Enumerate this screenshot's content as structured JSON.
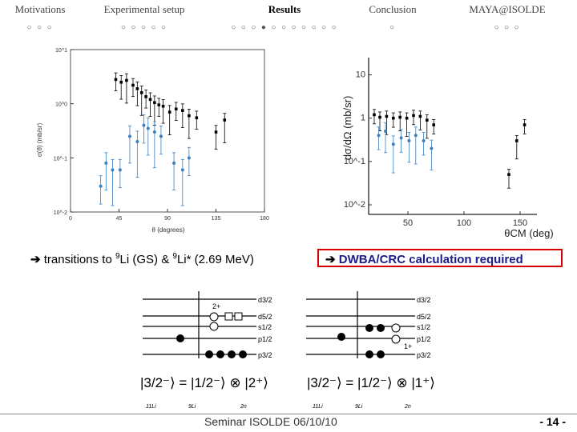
{
  "nav": {
    "sections": [
      {
        "title": "Motivations",
        "dots": "○ ○ ○"
      },
      {
        "title": "Experimental setup",
        "dots": "○ ○ ○ ○ ○"
      },
      {
        "title": "Results",
        "dots": "○ ○ ○ ● ○ ○ ○ ○ ○ ○ ○"
      },
      {
        "title": "Conclusion",
        "dots": "○"
      },
      {
        "title": "MAYA@ISOLDE",
        "dots": "○ ○ ○"
      }
    ]
  },
  "chart_data": [
    {
      "type": "scatter",
      "title": "",
      "xlabel": "θ (degrees)",
      "ylabel": "σ(θ) (mb/sr)",
      "yscale": "log",
      "xlim": [
        0,
        180
      ],
      "ylim": [
        0.01,
        10
      ],
      "xticks": [
        "0",
        "45",
        "90",
        "135",
        "180"
      ],
      "yticks": [
        "10^1",
        "10^0",
        "10^-1",
        "10^-2"
      ],
      "series": [
        {
          "name": "9Li (GS)",
          "color": "#000000",
          "x": [
            42,
            47,
            52,
            58,
            62,
            66,
            70,
            74,
            78,
            82,
            86,
            92,
            98,
            104,
            110,
            117,
            135,
            143
          ],
          "y": [
            2.8,
            2.5,
            2.7,
            2.2,
            1.9,
            1.6,
            1.35,
            1.2,
            1.05,
            0.95,
            0.9,
            0.7,
            0.8,
            0.75,
            0.6,
            0.55,
            0.3,
            0.5
          ]
        },
        {
          "name": "9Li* (2.69 MeV)",
          "color": "#3a7fc0",
          "x": [
            28,
            33,
            39,
            46,
            55,
            62,
            68,
            72,
            78,
            84,
            96,
            104,
            110
          ],
          "y": [
            0.03,
            0.08,
            0.06,
            0.06,
            0.25,
            0.2,
            0.4,
            0.35,
            0.3,
            0.25,
            0.08,
            0.06,
            0.1
          ]
        }
      ]
    },
    {
      "type": "scatter",
      "title": "",
      "xlabel": "θCM (deg)",
      "ylabel": "dσ/dΩ (mb/sr)",
      "yscale": "log",
      "xlim": [
        15,
        165
      ],
      "ylim": [
        0.006,
        25
      ],
      "xticks": [
        "50",
        "100",
        "150"
      ],
      "yticks": [
        "10",
        "1",
        "10^-1",
        "10^-2"
      ],
      "series": [
        {
          "name": "9Li (GS)",
          "color": "#000000",
          "x": [
            20,
            25,
            31,
            37,
            43,
            49,
            55,
            61,
            67,
            73,
            140,
            147,
            154
          ],
          "y": [
            1.2,
            1.05,
            1.1,
            1.0,
            1.05,
            1.0,
            1.15,
            1.1,
            0.9,
            0.7,
            0.05,
            0.3,
            0.7
          ]
        },
        {
          "name": "9Li* (2.69 MeV)",
          "color": "#3a7fc0",
          "x": [
            24,
            30,
            37,
            44,
            51,
            57,
            64,
            71
          ],
          "y": [
            0.4,
            0.5,
            0.25,
            0.35,
            0.3,
            0.4,
            0.3,
            0.2
          ]
        }
      ]
    }
  ],
  "content": {
    "caption_prefix": "transitions to ",
    "iso1_mass": "9",
    "iso1_rest": "Li (GS) & ",
    "iso2_mass": "9",
    "iso2_rest": "Li* (2.69 MeV)",
    "dwba": "DWBA/CRC calculation required"
  },
  "diagrams": {
    "levels": [
      "d3/2",
      "d5/2",
      "s1/2",
      "p1/2",
      "p3/2"
    ],
    "left_spin": "2+",
    "right_spin": "1+",
    "left_formula": "|3/2⁻⟩ = |1/2⁻⟩ ⊗ |2⁺⟩",
    "right_formula": "|3/2⁻⟩ = |1/2⁻⟩ ⊗ |1⁺⟩",
    "sub_left": "11Li",
    "sub_mid": "9Li",
    "sub_right": "2n"
  },
  "footer": {
    "text": "Seminar ISOLDE 06/10/10",
    "page": "- 14 -"
  }
}
